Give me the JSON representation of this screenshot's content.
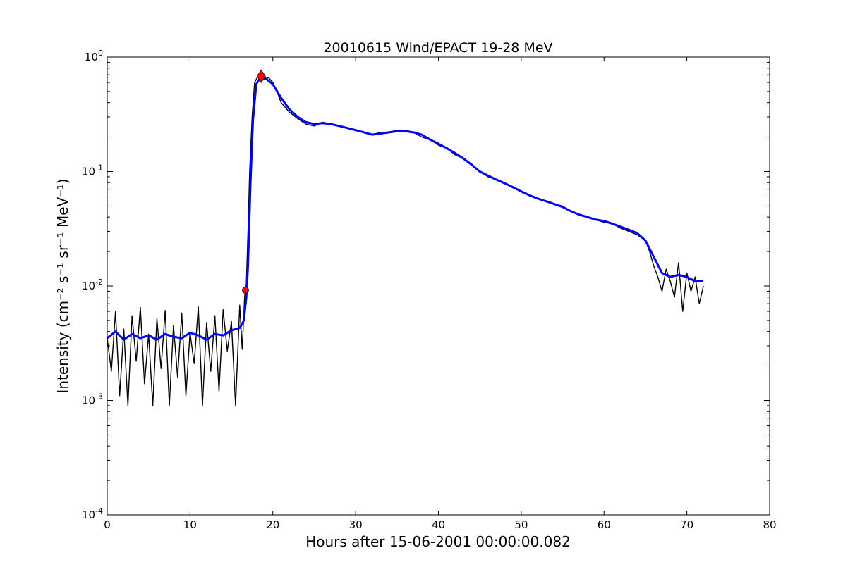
{
  "chart_data": {
    "type": "line",
    "title": "20010615 Wind/EPACT 19-28 MeV",
    "xlabel": "Hours after 15-06-2001 00:00:00.082",
    "ylabel": "Intensity (cm⁻² s⁻¹ sr⁻¹ MeV⁻¹)",
    "xlim": [
      0,
      80
    ],
    "ylim": [
      0.0001,
      1
    ],
    "yscale": "log",
    "grid": false,
    "x_ticks": [
      "0",
      "10",
      "20",
      "30",
      "40",
      "50",
      "60",
      "70",
      "80"
    ],
    "y_ticks": [
      {
        "base": "10",
        "exp": "0"
      },
      {
        "base": "10",
        "exp": "-1"
      },
      {
        "base": "10",
        "exp": "-2"
      },
      {
        "base": "10",
        "exp": "-3"
      },
      {
        "base": "10",
        "exp": "-4"
      }
    ],
    "series": [
      {
        "color": "#000000",
        "style": "raw",
        "x": [
          0,
          0.5,
          1,
          1.5,
          2,
          2.5,
          3,
          3.5,
          4,
          4.5,
          5,
          5.5,
          6,
          6.5,
          7,
          7.5,
          8,
          8.5,
          9,
          9.5,
          10,
          10.5,
          11,
          11.5,
          12,
          12.5,
          13,
          13.5,
          14,
          14.5,
          15,
          15.5,
          16,
          16.3,
          16.6,
          16.8,
          17.0,
          17.2,
          17.5,
          17.8,
          18.2,
          18.6,
          19,
          19.5,
          20,
          20.5,
          21,
          22,
          23,
          24,
          25,
          26,
          27,
          28,
          29,
          30,
          31,
          32,
          33,
          34,
          35,
          36,
          37,
          38,
          39,
          40,
          41,
          42,
          43,
          44,
          45,
          46,
          47,
          48,
          49,
          50,
          51,
          52,
          53,
          54,
          55,
          56,
          57,
          58,
          59,
          60,
          61,
          62,
          63,
          64,
          65,
          65.5,
          66,
          66.5,
          67,
          67.5,
          68,
          68.5,
          69,
          69.5,
          70,
          70.5,
          71,
          71.5,
          72
        ],
        "values": [
          0.0035,
          0.0018,
          0.006,
          0.0011,
          0.0042,
          0.0009,
          0.0055,
          0.0022,
          0.0065,
          0.0014,
          0.0038,
          0.0009,
          0.0052,
          0.0019,
          0.0061,
          0.0009,
          0.0045,
          0.0016,
          0.0058,
          0.0011,
          0.0039,
          0.0021,
          0.0066,
          0.0009,
          0.0048,
          0.0018,
          0.0055,
          0.0012,
          0.0062,
          0.0027,
          0.0049,
          0.0009,
          0.0068,
          0.0028,
          0.0082,
          0.0105,
          0.03,
          0.1,
          0.3,
          0.6,
          0.68,
          0.7,
          0.64,
          0.66,
          0.6,
          0.5,
          0.4,
          0.33,
          0.29,
          0.26,
          0.25,
          0.27,
          0.26,
          0.25,
          0.24,
          0.23,
          0.22,
          0.21,
          0.22,
          0.22,
          0.23,
          0.23,
          0.22,
          0.2,
          0.19,
          0.17,
          0.16,
          0.14,
          0.13,
          0.115,
          0.1,
          0.09,
          0.085,
          0.08,
          0.072,
          0.067,
          0.062,
          0.058,
          0.055,
          0.052,
          0.05,
          0.045,
          0.042,
          0.04,
          0.038,
          0.036,
          0.035,
          0.032,
          0.03,
          0.028,
          0.025,
          0.02,
          0.015,
          0.012,
          0.009,
          0.014,
          0.011,
          0.008,
          0.016,
          0.006,
          0.013,
          0.009,
          0.012,
          0.007,
          0.01
        ]
      },
      {
        "color": "#0000ff",
        "style": "smoothed",
        "x": [
          0,
          1,
          2,
          3,
          4,
          5,
          6,
          7,
          8,
          9,
          10,
          11,
          12,
          13,
          14,
          15,
          16,
          16.5,
          16.8,
          17.0,
          17.3,
          17.6,
          18,
          18.5,
          19,
          20,
          21,
          22,
          23,
          24,
          25,
          26,
          27,
          28,
          29,
          30,
          31,
          32,
          33,
          34,
          35,
          36,
          37,
          38,
          39,
          40,
          41,
          42,
          43,
          44,
          45,
          46,
          47,
          48,
          49,
          50,
          51,
          52,
          53,
          54,
          55,
          56,
          57,
          58,
          59,
          60,
          61,
          62,
          63,
          64,
          65,
          66,
          67,
          68,
          69,
          70,
          71,
          72
        ],
        "values": [
          0.0035,
          0.004,
          0.0034,
          0.0038,
          0.0035,
          0.0037,
          0.0034,
          0.0038,
          0.0036,
          0.0035,
          0.0039,
          0.0037,
          0.0034,
          0.0038,
          0.0037,
          0.0041,
          0.0043,
          0.005,
          0.008,
          0.015,
          0.08,
          0.28,
          0.58,
          0.66,
          0.66,
          0.58,
          0.44,
          0.35,
          0.3,
          0.27,
          0.26,
          0.265,
          0.26,
          0.25,
          0.24,
          0.23,
          0.22,
          0.21,
          0.215,
          0.22,
          0.225,
          0.225,
          0.22,
          0.21,
          0.19,
          0.175,
          0.16,
          0.145,
          0.13,
          0.115,
          0.1,
          0.092,
          0.085,
          0.079,
          0.073,
          0.067,
          0.062,
          0.058,
          0.055,
          0.052,
          0.049,
          0.045,
          0.042,
          0.04,
          0.038,
          0.037,
          0.035,
          0.033,
          0.031,
          0.029,
          0.025,
          0.018,
          0.013,
          0.012,
          0.0125,
          0.012,
          0.011,
          0.011
        ]
      }
    ],
    "markers": [
      {
        "shape": "circle",
        "color": "#ff0000",
        "x": 16.7,
        "y": 0.0092
      },
      {
        "shape": "diamond",
        "color": "#ff0000",
        "x": 18.6,
        "y": 0.68
      }
    ]
  }
}
